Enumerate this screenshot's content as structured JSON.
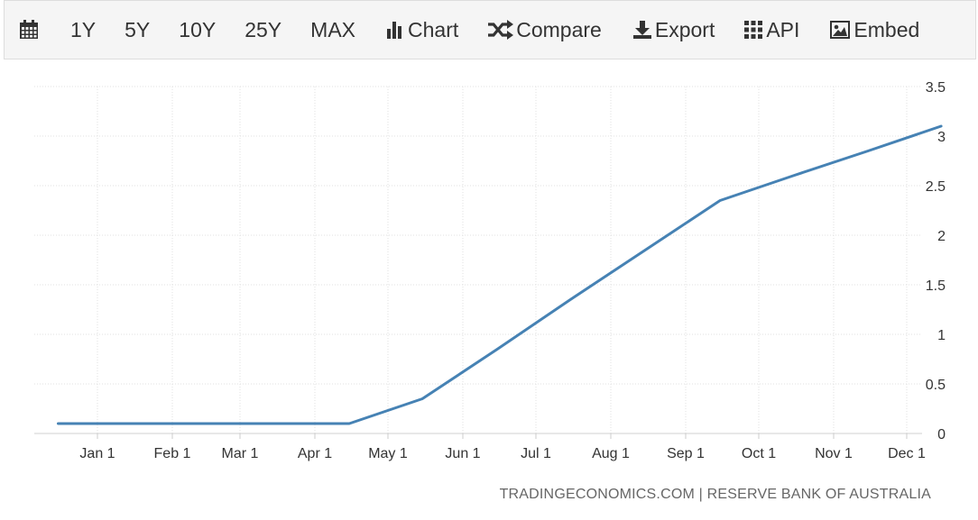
{
  "toolbar": {
    "calendar_icon": "calendar-icon",
    "range_1y": "1Y",
    "range_5y": "5Y",
    "range_10y": "10Y",
    "range_25y": "25Y",
    "range_max": "MAX",
    "chart_label": "Chart",
    "compare_label": "Compare",
    "export_label": "Export",
    "api_label": "API",
    "embed_label": "Embed"
  },
  "source": "TRADINGECONOMICS.COM | RESERVE BANK OF AUSTRALIA",
  "chart_data": {
    "type": "line",
    "title": "",
    "xlabel": "",
    "ylabel": "",
    "x_ticks": [
      "Jan 1",
      "Feb 1",
      "Mar 1",
      "Apr 1",
      "May 1",
      "Jun 1",
      "Jul 1",
      "Aug 1",
      "Sep 1",
      "Oct 1",
      "Nov 1",
      "Dec 1"
    ],
    "y_ticks": [
      "0",
      "0.5",
      "1",
      "1.5",
      "2",
      "2.5",
      "3",
      "3.5"
    ],
    "ylim": [
      0,
      3.5
    ],
    "grid": true,
    "line_color": "#4682b4",
    "series": [
      {
        "points": [
          {
            "x": "Dec 15",
            "y": 0.1
          },
          {
            "x": "Jan 1",
            "y": 0.1
          },
          {
            "x": "Feb 1",
            "y": 0.1
          },
          {
            "x": "Mar 1",
            "y": 0.1
          },
          {
            "x": "Apr 1",
            "y": 0.1
          },
          {
            "x": "Apr 15",
            "y": 0.1
          },
          {
            "x": "May 15",
            "y": 0.35
          },
          {
            "x": "Jun 15",
            "y": 0.85
          },
          {
            "x": "Jul 15",
            "y": 1.35
          },
          {
            "x": "Aug 15",
            "y": 1.85
          },
          {
            "x": "Sep 15",
            "y": 2.35
          },
          {
            "x": "Oct 15",
            "y": 2.6
          },
          {
            "x": "Nov 15",
            "y": 2.85
          },
          {
            "x": "Dec 15",
            "y": 3.1
          }
        ]
      }
    ]
  }
}
